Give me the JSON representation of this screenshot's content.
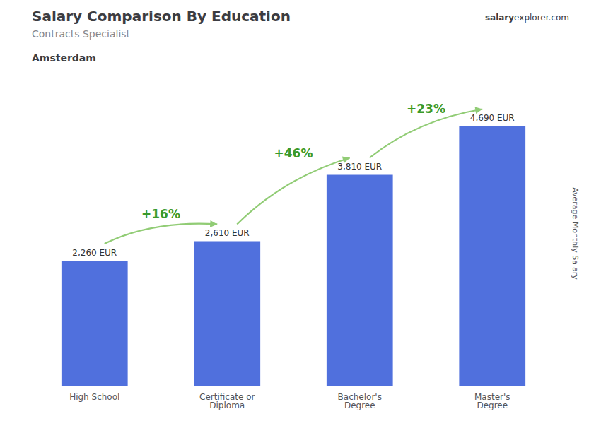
{
  "chart_data": {
    "type": "bar",
    "title": "Salary Comparison By Education",
    "subtitle": "Contracts Specialist",
    "city": "Amsterdam",
    "website": [
      "salary",
      "explorer.com"
    ],
    "y_label": "Average Monthly Salary",
    "categories": [
      "High School",
      "Certificate or\nDiploma",
      "Bachelor's\nDegree",
      "Master's\nDegree"
    ],
    "values": [
      2260,
      2610,
      3810,
      4690
    ],
    "value_labels": [
      "2,260 EUR",
      "2,610 EUR",
      "3,810 EUR",
      "4,690 EUR"
    ],
    "data_labels": true,
    "ylim": [
      0,
      5500
    ],
    "tick_labels": "x",
    "grid": false,
    "annotations": [
      {
        "text": "+16%",
        "from": "High School",
        "to": "Certificate or\nDiploma",
        "y": 3100
      },
      {
        "text": "+46%",
        "from": "Certificate or\nDiploma",
        "to": "Bachelor's\nDegree",
        "y": 4200
      },
      {
        "text": "+23%",
        "from": "Bachelor's\nDegree",
        "to": "Master's\nDegree",
        "y": 5000
      }
    ]
  }
}
